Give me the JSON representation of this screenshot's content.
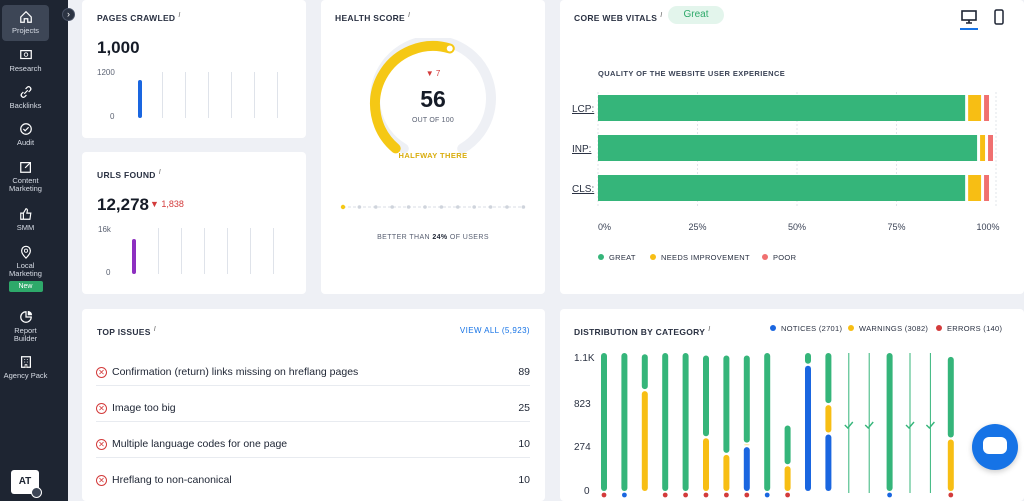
{
  "sidebar": {
    "items": [
      {
        "label": "Projects",
        "icon": "home-icon"
      },
      {
        "label": "Research",
        "icon": "research-icon"
      },
      {
        "label": "Backlinks",
        "icon": "link-icon"
      },
      {
        "label": "Audit",
        "icon": "check-circle-icon"
      },
      {
        "label": "Content Marketing",
        "icon": "edit-icon"
      },
      {
        "label": "SMM",
        "icon": "thumbs-up-icon"
      },
      {
        "label": "Local Marketing",
        "icon": "map-pin-icon",
        "badge": "New"
      },
      {
        "label": "Report Builder",
        "icon": "pie-chart-icon"
      },
      {
        "label": "Agency Pack",
        "icon": "building-icon"
      }
    ],
    "avatar": "AT"
  },
  "pages_crawled": {
    "title": "PAGES CRAWLED",
    "value": "1,000",
    "axis_top": "1200",
    "axis_bottom": "0",
    "bar_fraction": 0.833,
    "bar_color": "#1a66e0"
  },
  "urls_found": {
    "title": "URLS FOUND",
    "value": "12,278",
    "delta": "▼ 1,838",
    "axis_top": "16k",
    "axis_bottom": "0",
    "bar_fraction": 0.77,
    "bar_color": "#8d2fc0"
  },
  "health": {
    "title": "HEALTH SCORE",
    "delta": "▼ 7",
    "score": "56",
    "score_value": 56,
    "out_of": "OUT OF 100",
    "status": "HALFWAY THERE",
    "better_prefix": "BETTER THAN",
    "better_pct": "24%",
    "better_suffix": "OF USERS",
    "accent": "#f5c815"
  },
  "cwv": {
    "title": "CORE WEB VITALS",
    "badge": "Great",
    "subtitle": "QUALITY OF THE WEBSITE USER EXPERIENCE",
    "device_icons": [
      "desktop-icon",
      "mobile-icon"
    ],
    "colors": {
      "great": "#35b57a",
      "needs": "#f7be14",
      "poor": "#f07070"
    },
    "legend": [
      "GREAT",
      "NEEDS IMPROVEMENT",
      "POOR"
    ]
  },
  "top_issues": {
    "title": "TOP ISSUES",
    "view_all": "VIEW ALL (5,923)",
    "items": [
      {
        "label": "Confirmation (return) links missing on hreflang pages",
        "count": "89"
      },
      {
        "label": "Image too big",
        "count": "25"
      },
      {
        "label": "Multiple language codes for one page",
        "count": "10"
      },
      {
        "label": "Hreflang to non-canonical",
        "count": "10"
      }
    ]
  },
  "distribution": {
    "title": "DISTRIBUTION BY CATEGORY",
    "legend": [
      {
        "label": "NOTICES (2701)",
        "color": "#1a66e0"
      },
      {
        "label": "WARNINGS (3082)",
        "color": "#f7be14"
      },
      {
        "label": "ERRORS (140)",
        "color": "#d33b3b"
      }
    ],
    "axis": [
      "1.1K",
      "823",
      "274",
      "0"
    ]
  },
  "chart_data": [
    {
      "type": "bar",
      "title": "QUALITY OF THE WEBSITE USER EXPERIENCE",
      "categories": [
        "LCP:",
        "INP:",
        "CLS:"
      ],
      "series": [
        {
          "name": "GREAT",
          "values": [
            93,
            96,
            93
          ]
        },
        {
          "name": "NEEDS IMPROVEMENT",
          "values": [
            4,
            2,
            4
          ]
        },
        {
          "name": "POOR",
          "values": [
            2,
            2,
            2
          ]
        }
      ],
      "xticks": [
        "0%",
        "25%",
        "50%",
        "75%",
        "100%"
      ],
      "xlim": [
        0,
        100
      ],
      "legend_position": "bottom"
    },
    {
      "type": "bar",
      "title": "DISTRIBUTION BY CATEGORY",
      "yticks": [
        "1.1K",
        "823",
        "274",
        "0"
      ],
      "ylim": [
        0,
        1100
      ],
      "columns": [
        {
          "green": 1100,
          "notice": 0,
          "warning": 0,
          "error": 20
        },
        {
          "green": 1100,
          "notice": 20,
          "warning": 0,
          "error": 0
        },
        {
          "green": 290,
          "notice": 0,
          "warning": 800,
          "error": 0
        },
        {
          "green": 1100,
          "notice": 0,
          "warning": 0,
          "error": 20
        },
        {
          "green": 1100,
          "notice": 0,
          "warning": 0,
          "error": 20
        },
        {
          "green": 650,
          "notice": 0,
          "warning": 430,
          "error": 20
        },
        {
          "green": 780,
          "notice": 0,
          "warning": 300,
          "error": 20
        },
        {
          "green": 700,
          "notice": 360,
          "warning": 20,
          "error": 20
        },
        {
          "green": 1100,
          "notice": 20,
          "warning": 0,
          "error": 0
        },
        {
          "green": 320,
          "notice": 0,
          "warning": 210,
          "error": 20
        },
        {
          "green": 100,
          "notice": 1000,
          "warning": 0,
          "error": 0
        },
        {
          "green": 410,
          "notice": 460,
          "warning": 230,
          "error": 0
        },
        {
          "green": 0,
          "notice": 0,
          "warning": 0,
          "error": 0,
          "check": true
        },
        {
          "green": 0,
          "notice": 0,
          "warning": 0,
          "error": 0,
          "check": true
        },
        {
          "green": 1100,
          "notice": 20,
          "warning": 0,
          "error": 0
        },
        {
          "green": 0,
          "notice": 0,
          "warning": 0,
          "error": 0,
          "check": true
        },
        {
          "green": 0,
          "notice": 0,
          "warning": 0,
          "error": 0,
          "check": true
        },
        {
          "green": 650,
          "notice": 0,
          "warning": 420,
          "error": 20
        }
      ]
    }
  ]
}
